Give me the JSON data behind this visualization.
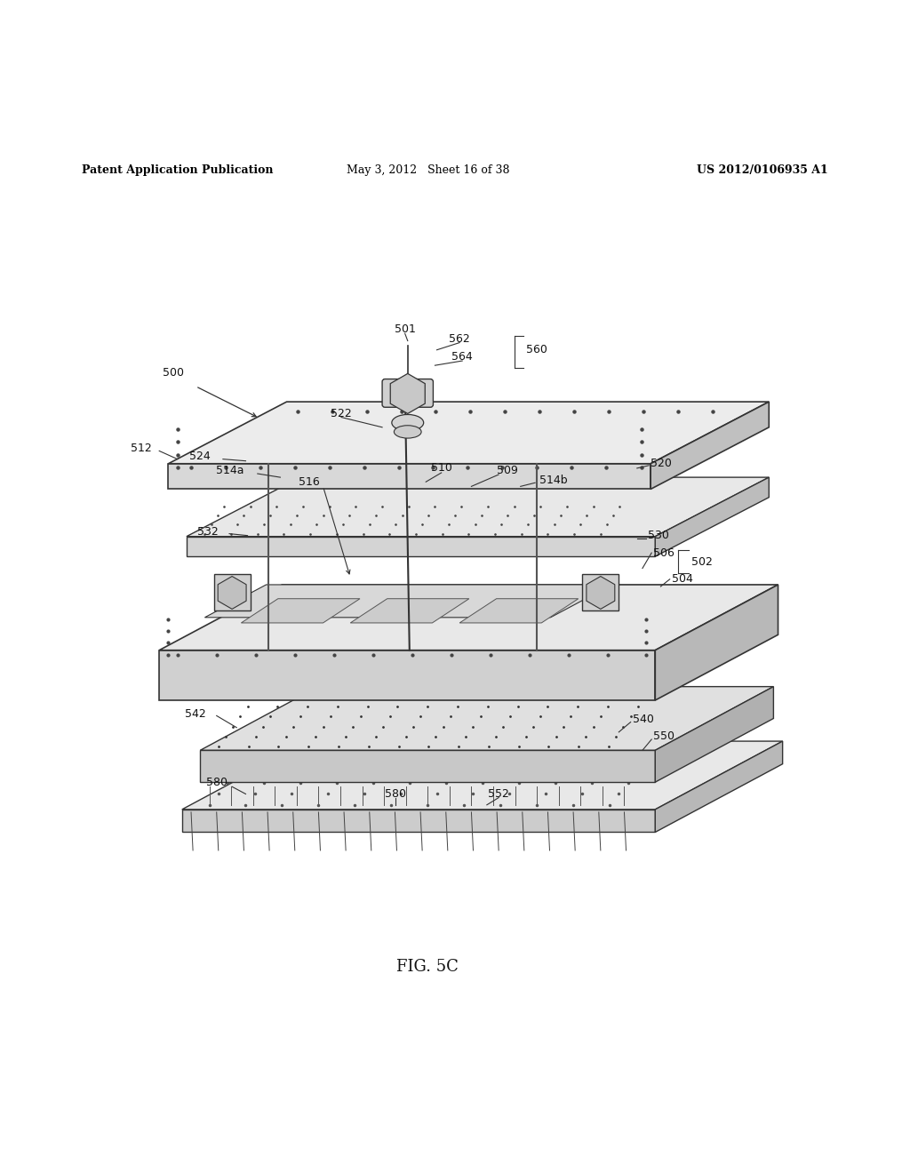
{
  "background_color": "#ffffff",
  "header_left": "Patent Application Publication",
  "header_center": "May 3, 2012   Sheet 16 of 38",
  "header_right": "US 2012/0106935 A1",
  "figure_label": "FIG. 5C"
}
